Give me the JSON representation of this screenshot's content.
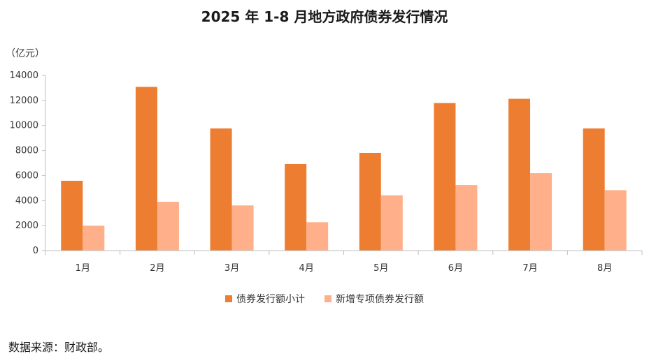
{
  "chart_data": {
    "type": "bar",
    "title": "2025 年 1-8 月地方政府债券发行情况",
    "ylabel": "（亿元）",
    "xlabel": "",
    "categories": [
      "1月",
      "2月",
      "3月",
      "4月",
      "5月",
      "6月",
      "7月",
      "8月"
    ],
    "series": [
      {
        "name": "债券发行额小计",
        "color": "#ED7D31",
        "values": [
          5580,
          13080,
          9760,
          6920,
          7810,
          11790,
          12130,
          9760
        ]
      },
      {
        "name": "新增专项债券发行额",
        "color": "#FFB08A",
        "values": [
          1990,
          3900,
          3610,
          2270,
          4420,
          5240,
          6190,
          4830
        ]
      }
    ],
    "ylim": [
      0,
      14000
    ],
    "yticks": [
      0,
      2000,
      4000,
      6000,
      8000,
      10000,
      12000,
      14000
    ],
    "grid": false,
    "legend_position": "bottom"
  },
  "source_note": "数据来源：财政部。"
}
